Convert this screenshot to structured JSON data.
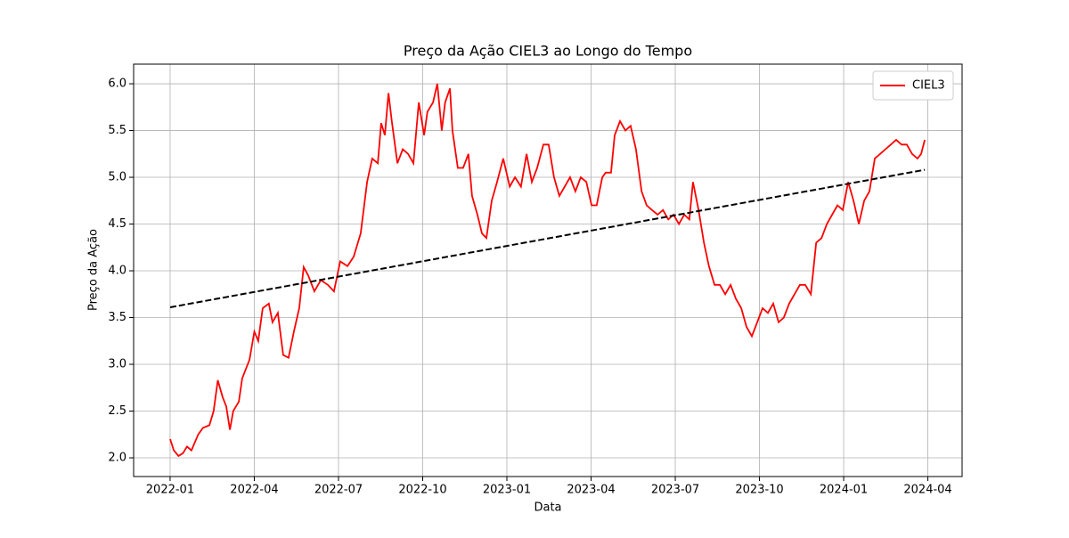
{
  "chart_data": {
    "type": "line",
    "title": "Preço da Ação CIEL3 ao Longo do Tempo",
    "xlabel": "Data",
    "ylabel": "Preço da Ação",
    "xlim": [
      -1.3,
      28.22
    ],
    "ylim": [
      1.8,
      6.21
    ],
    "xticks": [
      {
        "value": 0,
        "label": "2022-01"
      },
      {
        "value": 3,
        "label": "2022-04"
      },
      {
        "value": 6,
        "label": "2022-07"
      },
      {
        "value": 9,
        "label": "2022-10"
      },
      {
        "value": 12,
        "label": "2023-01"
      },
      {
        "value": 15,
        "label": "2023-04"
      },
      {
        "value": 18,
        "label": "2023-07"
      },
      {
        "value": 21,
        "label": "2023-10"
      },
      {
        "value": 24,
        "label": "2024-01"
      },
      {
        "value": 27,
        "label": "2024-04"
      }
    ],
    "yticks": [
      {
        "value": 2,
        "label": "2.0"
      },
      2.5,
      {
        "value": 3,
        "label": "3.0"
      },
      3.5,
      {
        "value": 4,
        "label": "4.0"
      },
      4.5,
      {
        "value": 5,
        "label": "5.0"
      },
      5.5,
      {
        "value": 6,
        "label": "6.0"
      }
    ],
    "grid": true,
    "legend": "upper right",
    "series": [
      {
        "name": "CIEL3",
        "color": "#ff0000",
        "dash": false,
        "x": [
          0,
          0.13,
          0.3,
          0.46,
          0.6,
          0.76,
          1.0,
          1.17,
          1.4,
          1.55,
          1.7,
          1.87,
          2.0,
          2.13,
          2.25,
          2.45,
          2.57,
          2.83,
          3.0,
          3.14,
          3.3,
          3.52,
          3.65,
          3.84,
          4.03,
          4.22,
          4.41,
          4.6,
          4.76,
          4.92,
          5.14,
          5.37,
          5.62,
          5.84,
          6.06,
          6.32,
          6.54,
          6.79,
          7.02,
          7.2,
          7.4,
          7.52,
          7.65,
          7.78,
          7.9,
          8.1,
          8.29,
          8.48,
          8.67,
          8.86,
          9.05,
          9.17,
          9.37,
          9.52,
          9.68,
          9.8,
          9.97,
          10.06,
          10.25,
          10.44,
          10.63,
          10.76,
          10.95,
          11.11,
          11.27,
          11.46,
          11.65,
          11.87,
          12.1,
          12.29,
          12.5,
          12.7,
          12.89,
          13.08,
          13.3,
          13.49,
          13.68,
          13.87,
          14.06,
          14.25,
          14.44,
          14.63,
          14.83,
          15.02,
          15.2,
          15.4,
          15.52,
          15.71,
          15.84,
          16.03,
          16.22,
          16.41,
          16.6,
          16.8,
          16.98,
          17.17,
          17.37,
          17.56,
          17.75,
          17.94,
          18.13,
          18.32,
          18.5,
          18.63,
          18.83,
          19.02,
          19.2,
          19.4,
          19.59,
          19.78,
          19.97,
          20.16,
          20.35,
          20.54,
          20.73,
          20.92,
          21.11,
          21.3,
          21.49,
          21.68,
          21.87,
          22.06,
          22.25,
          22.44,
          22.63,
          22.83,
          23.02,
          23.21,
          23.4,
          23.59,
          23.78,
          23.97,
          24.16,
          24.35,
          24.54,
          24.73,
          24.92,
          25.11,
          25.3,
          25.49,
          25.68,
          25.87,
          26.06,
          26.25,
          26.44,
          26.63,
          26.76,
          26.89
        ],
        "values": [
          2.2,
          2.08,
          2.02,
          2.05,
          2.12,
          2.08,
          2.25,
          2.32,
          2.35,
          2.5,
          2.83,
          2.65,
          2.55,
          2.3,
          2.5,
          2.6,
          2.85,
          3.05,
          3.35,
          3.25,
          3.6,
          3.65,
          3.45,
          3.55,
          3.1,
          3.07,
          3.35,
          3.6,
          4.04,
          3.95,
          3.78,
          3.9,
          3.85,
          3.78,
          4.1,
          4.05,
          4.15,
          4.4,
          4.95,
          5.2,
          5.15,
          5.58,
          5.45,
          5.9,
          5.6,
          5.15,
          5.3,
          5.25,
          5.15,
          5.8,
          5.45,
          5.7,
          5.8,
          6.0,
          5.5,
          5.8,
          5.95,
          5.5,
          5.1,
          5.1,
          5.25,
          4.8,
          4.6,
          4.4,
          4.35,
          4.75,
          4.95,
          5.2,
          4.9,
          5.0,
          4.9,
          5.25,
          4.95,
          5.1,
          5.35,
          5.35,
          5.0,
          4.8,
          4.9,
          5.0,
          4.85,
          5.0,
          4.95,
          4.7,
          4.7,
          5.0,
          5.05,
          5.05,
          5.45,
          5.6,
          5.5,
          5.55,
          5.3,
          4.85,
          4.7,
          4.65,
          4.6,
          4.65,
          4.55,
          4.6,
          4.5,
          4.6,
          4.55,
          4.95,
          4.65,
          4.3,
          4.05,
          3.85,
          3.85,
          3.75,
          3.85,
          3.7,
          3.6,
          3.4,
          3.3,
          3.45,
          3.6,
          3.55,
          3.65,
          3.45,
          3.5,
          3.65,
          3.75,
          3.85,
          3.85,
          3.75,
          4.3,
          4.35,
          4.5,
          4.6,
          4.7,
          4.65,
          4.95,
          4.75,
          4.5,
          4.75,
          4.85,
          5.2,
          5.25,
          5.3,
          5.35,
          5.4,
          5.35,
          5.35,
          5.25,
          5.2,
          5.25,
          5.4
        ]
      },
      {
        "color": "#000000",
        "dash": true,
        "x": [
          0,
          26.89
        ],
        "values": [
          3.61,
          5.08
        ]
      }
    ]
  }
}
